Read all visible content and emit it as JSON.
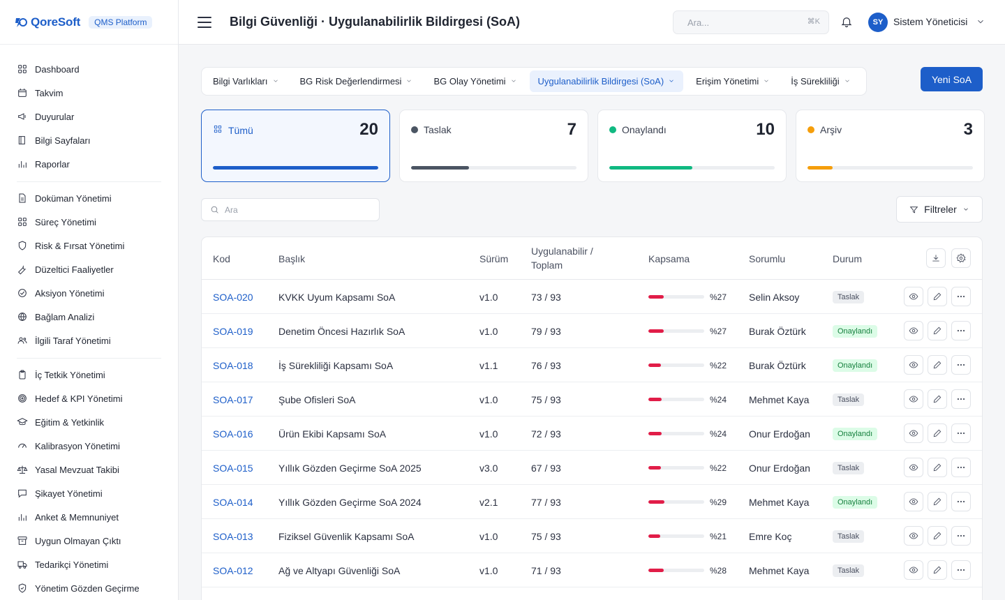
{
  "brand": {
    "name": "QoreSoft",
    "platform": "QMS Platform"
  },
  "sidebar": {
    "groups": [
      [
        {
          "label": "Dashboard",
          "icon": "grid-icon"
        },
        {
          "label": "Takvim",
          "icon": "calendar-icon"
        },
        {
          "label": "Duyurular",
          "icon": "megaphone-icon"
        },
        {
          "label": "Bilgi Sayfaları",
          "icon": "book-icon"
        },
        {
          "label": "Raporlar",
          "icon": "bar-chart-icon"
        }
      ],
      [
        {
          "label": "Doküman Yönetimi",
          "icon": "document-icon"
        },
        {
          "label": "Süreç Yönetimi",
          "icon": "grid-icon"
        },
        {
          "label": "Risk & Fırsat Yönetimi",
          "icon": "shield-icon"
        },
        {
          "label": "Düzeltici Faaliyetler",
          "icon": "wrench-icon"
        },
        {
          "label": "Aksiyon Yönetimi",
          "icon": "check-circle-icon"
        },
        {
          "label": "Bağlam Analizi",
          "icon": "globe-icon"
        },
        {
          "label": "İlgili Taraf Yönetimi",
          "icon": "users-icon"
        }
      ],
      [
        {
          "label": "İç Tetkik Yönetimi",
          "icon": "clipboard-icon"
        },
        {
          "label": "Hedef & KPI Yönetimi",
          "icon": "target-icon"
        },
        {
          "label": "Eğitim & Yetkinlik",
          "icon": "graduation-cap-icon"
        },
        {
          "label": "Kalibrasyon Yönetimi",
          "icon": "gauge-icon"
        },
        {
          "label": "Yasal Mevzuat Takibi",
          "icon": "scale-icon"
        },
        {
          "label": "Şikayet Yönetimi",
          "icon": "message-icon"
        },
        {
          "label": "Anket & Memnuniyet",
          "icon": "bar-chart-icon"
        },
        {
          "label": "Uygun Olmayan Çıktı",
          "icon": "archive-icon"
        },
        {
          "label": "Tedarikçi Yönetimi",
          "icon": "truck-icon"
        },
        {
          "label": "Yönetim Gözden Geçirme",
          "icon": "shield-check-icon"
        }
      ]
    ]
  },
  "header": {
    "title": "Bilgi Güvenliği · Uygulanabilirlik Bildirgesi (SoA)",
    "search_placeholder": "Ara...",
    "shortcut": "⌘K",
    "user_initials": "SY",
    "user_name": "Sistem Yöneticisi"
  },
  "tabs": [
    {
      "label": "Bilgi Varlıkları",
      "active": false
    },
    {
      "label": "BG Risk Değerlendirmesi",
      "active": false
    },
    {
      "label": "BG Olay Yönetimi",
      "active": false
    },
    {
      "label": "Uygulanabilirlik Bildirgesi (SoA)",
      "active": true
    },
    {
      "label": "Erişim Yönetimi",
      "active": false
    },
    {
      "label": "İş Sürekliliği",
      "active": false
    }
  ],
  "new_button": "Yeni SoA",
  "status_cards": [
    {
      "label": "Tümü",
      "count": "20",
      "color": "#1d5ec9",
      "fraction": 1.0,
      "active": true
    },
    {
      "label": "Taslak",
      "count": "7",
      "color": "#4b5563",
      "fraction": 0.35,
      "active": false
    },
    {
      "label": "Onaylandı",
      "count": "10",
      "color": "#10b981",
      "fraction": 0.5,
      "active": false
    },
    {
      "label": "Arşiv",
      "count": "3",
      "color": "#f59e0b",
      "fraction": 0.15,
      "active": false
    }
  ],
  "table_search_placeholder": "Ara",
  "filter_label": "Filtreler",
  "table": {
    "columns": [
      "Kod",
      "Başlık",
      "Sürüm",
      "Uygulanabilir / Toplam",
      "Kapsama",
      "Sorumlu",
      "Durum"
    ],
    "rows": [
      {
        "code": "SOA-020",
        "title": "KVKK Uyum Kapsamı SoA",
        "version": "v1.0",
        "ratio": "73 / 93",
        "coverage": 27,
        "coverage_label": "%27",
        "owner": "Selin Aksoy",
        "status": "Taslak"
      },
      {
        "code": "SOA-019",
        "title": "Denetim Öncesi Hazırlık SoA",
        "version": "v1.0",
        "ratio": "79 / 93",
        "coverage": 27,
        "coverage_label": "%27",
        "owner": "Burak Öztürk",
        "status": "Onaylandı"
      },
      {
        "code": "SOA-018",
        "title": "İş Sürekliliği Kapsamı SoA",
        "version": "v1.1",
        "ratio": "76 / 93",
        "coverage": 22,
        "coverage_label": "%22",
        "owner": "Burak Öztürk",
        "status": "Onaylandı"
      },
      {
        "code": "SOA-017",
        "title": "Şube Ofisleri SoA",
        "version": "v1.0",
        "ratio": "75 / 93",
        "coverage": 24,
        "coverage_label": "%24",
        "owner": "Mehmet Kaya",
        "status": "Taslak"
      },
      {
        "code": "SOA-016",
        "title": "Ürün Ekibi Kapsamı SoA",
        "version": "v1.0",
        "ratio": "72 / 93",
        "coverage": 24,
        "coverage_label": "%24",
        "owner": "Onur Erdoğan",
        "status": "Onaylandı"
      },
      {
        "code": "SOA-015",
        "title": "Yıllık Gözden Geçirme SoA 2025",
        "version": "v3.0",
        "ratio": "67 / 93",
        "coverage": 22,
        "coverage_label": "%22",
        "owner": "Onur Erdoğan",
        "status": "Taslak"
      },
      {
        "code": "SOA-014",
        "title": "Yıllık Gözden Geçirme SoA 2024",
        "version": "v2.1",
        "ratio": "77 / 93",
        "coverage": 29,
        "coverage_label": "%29",
        "owner": "Mehmet Kaya",
        "status": "Onaylandı"
      },
      {
        "code": "SOA-013",
        "title": "Fiziksel Güvenlik Kapsamı SoA",
        "version": "v1.0",
        "ratio": "75 / 93",
        "coverage": 21,
        "coverage_label": "%21",
        "owner": "Emre Koç",
        "status": "Taslak"
      },
      {
        "code": "SOA-012",
        "title": "Ağ ve Altyapı Güvenliği SoA",
        "version": "v1.0",
        "ratio": "71 / 93",
        "coverage": 28,
        "coverage_label": "%28",
        "owner": "Mehmet Kaya",
        "status": "Taslak"
      }
    ]
  }
}
